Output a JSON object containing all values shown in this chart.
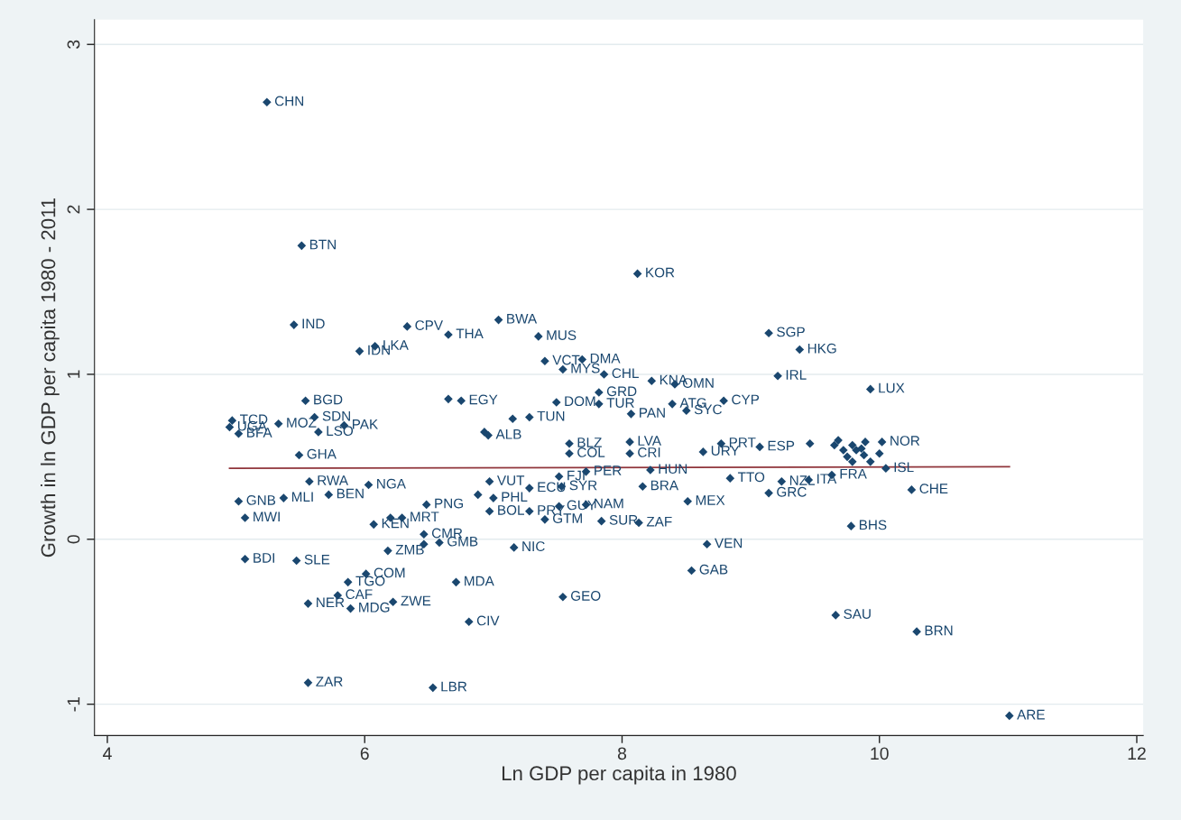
{
  "chart_data": {
    "type": "scatter",
    "xlabel": "Ln GDP per capita in 1980",
    "ylabel": "Growth in ln GDP per capita 1980 - 2011",
    "xlim": [
      3.9,
      12.05
    ],
    "ylim": [
      -1.19,
      3.15
    ],
    "xticks": [
      4,
      6,
      8,
      10,
      12
    ],
    "yticks": [
      -1,
      0,
      1,
      2,
      3
    ],
    "grid": "y",
    "series": [
      {
        "color": "#1a476f",
        "marker": "diamond",
        "x": [
          5.24,
          5.51,
          8.12,
          5.45,
          6.33,
          7.04,
          6.65,
          7.35,
          9.14,
          9.38,
          6.08,
          5.96,
          7.4,
          7.69,
          7.54,
          7.86,
          8.23,
          8.41,
          9.21,
          9.93,
          8.79,
          8.39,
          8.5,
          8.07,
          7.82,
          7.49,
          7.82,
          6.65,
          6.75,
          7.15,
          7.28,
          6.93,
          6.96,
          7.59,
          7.59,
          8.06,
          8.06,
          8.63,
          8.77,
          9.07,
          9.46,
          8.22,
          7.51,
          7.72,
          6.97,
          6.88,
          7.0,
          7.28,
          7.53,
          8.16,
          6.48,
          6.97,
          7.28,
          7.51,
          7.72,
          7.4,
          7.84,
          8.13,
          8.51,
          7.16,
          6.71,
          7.54,
          6.81,
          6.53,
          5.56,
          8.66,
          8.54,
          9.66,
          10.29,
          11.01,
          9.78,
          10.25,
          8.84,
          9.24,
          9.14,
          9.45,
          9.63,
          9.65,
          9.68,
          9.72,
          9.75,
          9.79,
          9.82,
          9.86,
          9.79,
          9.89,
          9.88,
          9.93,
          10.0,
          10.02,
          10.05,
          5.54,
          4.97,
          4.95,
          5.02,
          5.33,
          5.61,
          5.84,
          5.64,
          5.49,
          5.57,
          6.03,
          5.37,
          5.72,
          5.02,
          5.07,
          5.07,
          5.47,
          6.07,
          6.2,
          6.29,
          6.46,
          6.46,
          6.58,
          6.18,
          6.01,
          5.87,
          5.79,
          5.56,
          5.89,
          6.22
        ],
        "values": [
          2.65,
          1.78,
          1.61,
          1.3,
          1.29,
          1.33,
          1.24,
          1.23,
          1.25,
          1.15,
          1.17,
          1.14,
          1.08,
          1.09,
          1.03,
          1.0,
          0.96,
          0.94,
          0.99,
          0.91,
          0.84,
          0.82,
          0.78,
          0.76,
          0.89,
          0.83,
          0.82,
          0.85,
          0.84,
          0.73,
          0.74,
          0.65,
          0.63,
          0.58,
          0.52,
          0.59,
          0.52,
          0.53,
          0.58,
          0.56,
          0.58,
          0.42,
          0.38,
          0.41,
          0.35,
          0.27,
          0.25,
          0.31,
          0.32,
          0.32,
          0.21,
          0.17,
          0.17,
          0.2,
          0.21,
          0.12,
          0.11,
          0.1,
          0.23,
          -0.05,
          -0.26,
          -0.35,
          -0.5,
          -0.9,
          -0.87,
          -0.03,
          -0.19,
          -0.46,
          -0.56,
          -1.07,
          0.08,
          0.3,
          0.37,
          0.35,
          0.28,
          0.36,
          0.39,
          0.57,
          0.6,
          0.54,
          0.5,
          0.57,
          0.54,
          0.55,
          0.47,
          0.59,
          0.51,
          0.47,
          0.52,
          0.59,
          0.43,
          0.84,
          0.72,
          0.68,
          0.64,
          0.7,
          0.74,
          0.69,
          0.65,
          0.51,
          0.35,
          0.33,
          0.25,
          0.27,
          0.23,
          0.13,
          -0.12,
          -0.13,
          0.09,
          0.13,
          0.13,
          0.03,
          -0.03,
          -0.02,
          -0.07,
          -0.21,
          -0.26,
          -0.34,
          -0.39,
          -0.42,
          -0.38
        ],
        "value_labels": [
          "CHN",
          "BTN",
          "KOR",
          "IND",
          "CPV",
          "BWA",
          "THA",
          "MUS",
          "SGP",
          "HKG",
          "LKA",
          "IDN",
          "VCT",
          "DMA",
          "MYS",
          "CHL",
          "KNA",
          "OMN",
          "IRL",
          "LUX",
          "CYP",
          "ATG",
          "SYC",
          "PAN",
          "GRD",
          "DOM",
          "TUR",
          null,
          "EGY",
          null,
          "TUN",
          null,
          "ALB",
          "BLZ",
          "COL",
          "LVA",
          "CRI",
          "URY",
          "PRT",
          "ESP",
          null,
          "HUN",
          "FJI",
          "PER",
          "VUT",
          null,
          "PHL",
          "ECU",
          "SYR",
          "BRA",
          "PNG",
          "BOL",
          "PRY",
          "GUY",
          "NAM",
          "GTM",
          "SUR",
          "ZAF",
          "MEX",
          "NIC",
          "MDA",
          "GEO",
          "CIV",
          "LBR",
          "ZAR",
          "VEN",
          "GAB",
          "SAU",
          "BRN",
          "ARE",
          "BHS",
          "CHE",
          "TTO",
          "NZL",
          "GRC",
          "ITA",
          "FRA",
          null,
          null,
          null,
          null,
          null,
          null,
          null,
          null,
          null,
          null,
          null,
          null,
          "NOR",
          "ISL",
          "BGD",
          "TCD",
          "UGA",
          "BFA",
          "MOZ",
          "SDN",
          "PAK",
          "LSO",
          "GHA",
          "RWA",
          "NGA",
          "MLI",
          "BEN",
          "GNB",
          "MWI",
          "BDI",
          "SLE",
          "KEN",
          null,
          "MRT",
          "CMR",
          null,
          "GMB",
          "ZMB",
          "COM",
          "TGO",
          "CAF",
          "NER",
          "MDG",
          "ZWE"
        ]
      },
      {
        "type": "line",
        "color": "#90353b",
        "marker": "none",
        "line_style": "solid",
        "x": [
          4.95,
          11.01
        ],
        "values": [
          0.43,
          0.44
        ]
      }
    ]
  }
}
